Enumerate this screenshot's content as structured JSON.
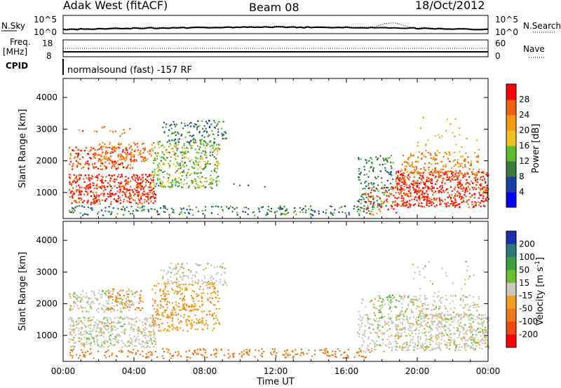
{
  "header": {
    "radar": "Adak West (fitACF)",
    "beam": "Beam 08",
    "date": "18/Oct/2012"
  },
  "sky_panel": {
    "left_label": "N.Sky",
    "left_ticks": [
      "10^5",
      "10^0"
    ],
    "right_label": "N.Search",
    "right_ticks": [
      "10^5",
      "10^0"
    ]
  },
  "freq_panel": {
    "left_label_1": "Freq.",
    "left_label_2": "[MHz]",
    "left_ticks": [
      "18",
      "8"
    ],
    "right_label": "Nave",
    "right_ticks": [
      "60",
      "0"
    ]
  },
  "cpid_panel": {
    "label": "CPID",
    "text": "normalsound (fast) -157 RF"
  },
  "colors": {
    "power_scale": [
      "#0000ff",
      "#1a3fa8",
      "#3a7a3a",
      "#5cbf2a",
      "#f0c020",
      "#f59a10",
      "#f06010",
      "#ff0000"
    ],
    "velocity_scale": [
      "#1a2fb0",
      "#2a7a7a",
      "#3aa03a",
      "#6ac030",
      "#c8c8bc",
      "#f0a020",
      "#f07818",
      "#f04810",
      "#ff0000"
    ]
  },
  "chart_data": [
    {
      "type": "heatmap",
      "title": "Power",
      "xlabel": "",
      "ylabel": "Slant Range [km]",
      "x_ticks": [
        "00:00",
        "04:00",
        "08:00",
        "12:00",
        "16:00",
        "20:00",
        "00:00"
      ],
      "y_ticks": [
        "1000",
        "2000",
        "3000",
        "4000"
      ],
      "xlim_hours": [
        0,
        24
      ],
      "ylim_km": [
        180,
        4600
      ],
      "colorbar": {
        "label": "Power [dB]",
        "ticks": [
          "4",
          "8",
          "12",
          "16",
          "20",
          "24",
          "28"
        ],
        "range": [
          0,
          32
        ]
      },
      "regions": [
        {
          "name": "early-broad",
          "t": [
            0.3,
            5.2
          ],
          "r": [
            650,
            1600
          ],
          "value": 28,
          "density": 0.75
        },
        {
          "name": "early-upper",
          "t": [
            0.3,
            4.0
          ],
          "r": [
            1750,
            2450
          ],
          "value": 27,
          "density": 0.55
        },
        {
          "name": "early-top",
          "t": [
            0.5,
            3.8
          ],
          "r": [
            2800,
            3100
          ],
          "value": 26,
          "density": 0.12
        },
        {
          "name": "mid-band",
          "t": [
            2.0,
            5.3
          ],
          "r": [
            2000,
            2600
          ],
          "value": 24,
          "density": 0.45
        },
        {
          "name": "descend-arc",
          "t": [
            5.0,
            8.8
          ],
          "r": [
            1150,
            2700
          ],
          "value": 14,
          "density": 0.5
        },
        {
          "name": "arc-top",
          "t": [
            5.5,
            9.2
          ],
          "r": [
            2600,
            3300
          ],
          "value": 9,
          "density": 0.35
        },
        {
          "name": "isolated",
          "t": [
            9.5,
            11.7
          ],
          "r": [
            1200,
            1300
          ],
          "value": 6,
          "density": 0.15
        },
        {
          "name": "near-range",
          "t": [
            0.3,
            17.5
          ],
          "r": [
            300,
            600
          ],
          "value": 10,
          "density": 0.35
        },
        {
          "name": "late-rise",
          "t": [
            16.6,
            18.6
          ],
          "r": [
            500,
            2200
          ],
          "value": 10,
          "density": 0.35
        },
        {
          "name": "late-red",
          "t": [
            17.0,
            18.8
          ],
          "r": [
            300,
            1200
          ],
          "value": 27,
          "density": 0.3
        },
        {
          "name": "dusk-broad",
          "t": [
            18.7,
            24.0
          ],
          "r": [
            550,
            1700
          ],
          "value": 28,
          "density": 0.8
        },
        {
          "name": "dusk-upper",
          "t": [
            19.0,
            23.5
          ],
          "r": [
            1600,
            2300
          ],
          "value": 24,
          "density": 0.4
        },
        {
          "name": "dusk-top",
          "t": [
            19.5,
            23.5
          ],
          "r": [
            2300,
            3400
          ],
          "value": 20,
          "density": 0.05
        }
      ]
    },
    {
      "type": "heatmap",
      "title": "Velocity",
      "xlabel": "Time UT",
      "ylabel": "Slant Range [km]",
      "x_ticks": [
        "00:00",
        "04:00",
        "08:00",
        "12:00",
        "16:00",
        "20:00",
        "00:00"
      ],
      "y_ticks": [
        "1000",
        "2000",
        "3000",
        "4000"
      ],
      "xlim_hours": [
        0,
        24
      ],
      "ylim_km": [
        180,
        4600
      ],
      "colorbar": {
        "label": "Velocity [m s^-1]",
        "ticks": [
          "200",
          "100",
          "50",
          "15",
          "-15",
          "-50",
          "-100",
          "-200"
        ],
        "range": [
          -250,
          250
        ]
      },
      "regions": [
        {
          "name": "early-broad",
          "t": [
            0.3,
            5.2
          ],
          "r": [
            650,
            1600
          ],
          "value": 0,
          "density": 0.75
        },
        {
          "name": "early-upper",
          "t": [
            0.3,
            4.0
          ],
          "r": [
            1750,
            2450
          ],
          "value": 0,
          "density": 0.55
        },
        {
          "name": "early-orange",
          "t": [
            2.5,
            4.5
          ],
          "r": [
            1800,
            2500
          ],
          "value": -60,
          "density": 0.3
        },
        {
          "name": "descend-arc",
          "t": [
            5.0,
            8.8
          ],
          "r": [
            1150,
            2700
          ],
          "value": -40,
          "density": 0.45
        },
        {
          "name": "arc-top",
          "t": [
            5.5,
            9.2
          ],
          "r": [
            2600,
            3300
          ],
          "value": 0,
          "density": 0.35
        },
        {
          "name": "near-range",
          "t": [
            0.3,
            17.5
          ],
          "r": [
            300,
            600
          ],
          "value": -70,
          "density": 0.35
        },
        {
          "name": "late-rise",
          "t": [
            16.6,
            18.6
          ],
          "r": [
            500,
            2200
          ],
          "value": 0,
          "density": 0.4
        },
        {
          "name": "late-green",
          "t": [
            17.8,
            19.0
          ],
          "r": [
            1500,
            2300
          ],
          "value": 40,
          "density": 0.3
        },
        {
          "name": "dusk-broad",
          "t": [
            18.7,
            24.0
          ],
          "r": [
            550,
            1700
          ],
          "value": 0,
          "density": 0.8
        },
        {
          "name": "dusk-upper",
          "t": [
            19.0,
            23.5
          ],
          "r": [
            1600,
            2300
          ],
          "value": 0,
          "density": 0.4
        },
        {
          "name": "dusk-top",
          "t": [
            19.5,
            23.5
          ],
          "r": [
            2300,
            3400
          ],
          "value": 0,
          "density": 0.05
        }
      ]
    }
  ]
}
